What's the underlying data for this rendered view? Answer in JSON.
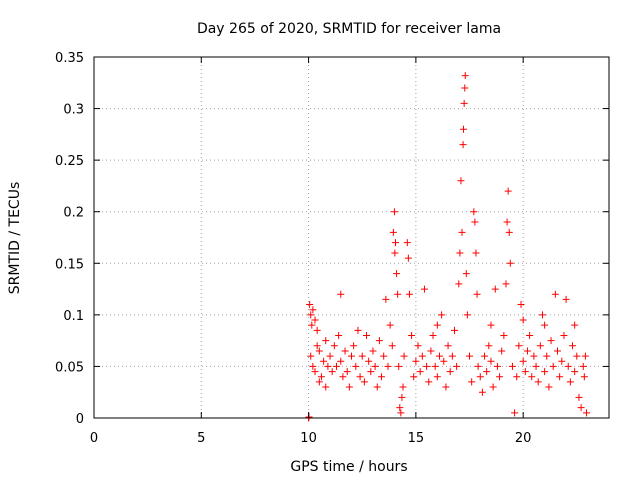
{
  "chart_data": {
    "type": "scatter",
    "title": "Day 265 of 2020, SRMTID for receiver lama",
    "xlabel": "GPS time / hours",
    "ylabel": "SRMTID / TECUs",
    "xlim": [
      0,
      24
    ],
    "ylim": [
      0,
      0.35
    ],
    "x_ticks": [
      0,
      5,
      10,
      15,
      20
    ],
    "x_tick_labels": [
      "0",
      "5",
      "10",
      "15",
      "20"
    ],
    "y_ticks": [
      0,
      0.05,
      0.1,
      0.15,
      0.2,
      0.25,
      0.3,
      0.35
    ],
    "y_tick_labels": [
      "0",
      "0.05",
      "0.1",
      "0.15",
      "0.2",
      "0.25",
      "0.3",
      "0.35"
    ],
    "grid": true,
    "marker": "+",
    "color": "#ff0000",
    "series": [
      {
        "name": "SRMTID",
        "points": [
          [
            10.0,
            0.0
          ],
          [
            10.02,
            0.001
          ],
          [
            10.05,
            0.11
          ],
          [
            10.1,
            0.1
          ],
          [
            10.15,
            0.09
          ],
          [
            10.2,
            0.105
          ],
          [
            10.3,
            0.095
          ],
          [
            10.4,
            0.085
          ],
          [
            10.1,
            0.06
          ],
          [
            10.2,
            0.05
          ],
          [
            10.3,
            0.045
          ],
          [
            10.4,
            0.07
          ],
          [
            10.5,
            0.065
          ],
          [
            10.6,
            0.04
          ],
          [
            10.7,
            0.055
          ],
          [
            10.8,
            0.075
          ],
          [
            10.9,
            0.05
          ],
          [
            11.0,
            0.06
          ],
          [
            11.1,
            0.045
          ],
          [
            11.2,
            0.07
          ],
          [
            10.5,
            0.035
          ],
          [
            10.8,
            0.03
          ],
          [
            11.3,
            0.05
          ],
          [
            11.4,
            0.08
          ],
          [
            11.5,
            0.055
          ],
          [
            11.6,
            0.04
          ],
          [
            11.7,
            0.065
          ],
          [
            11.8,
            0.045
          ],
          [
            11.9,
            0.03
          ],
          [
            12.0,
            0.06
          ],
          [
            12.1,
            0.07
          ],
          [
            12.2,
            0.05
          ],
          [
            11.5,
            0.12
          ],
          [
            12.3,
            0.085
          ],
          [
            12.4,
            0.04
          ],
          [
            12.5,
            0.06
          ],
          [
            12.6,
            0.035
          ],
          [
            12.7,
            0.08
          ],
          [
            12.8,
            0.055
          ],
          [
            12.9,
            0.045
          ],
          [
            13.0,
            0.065
          ],
          [
            13.1,
            0.05
          ],
          [
            13.2,
            0.03
          ],
          [
            13.3,
            0.075
          ],
          [
            13.4,
            0.04
          ],
          [
            13.5,
            0.06
          ],
          [
            13.6,
            0.115
          ],
          [
            13.7,
            0.05
          ],
          [
            13.8,
            0.09
          ],
          [
            13.9,
            0.07
          ],
          [
            13.95,
            0.18
          ],
          [
            14.0,
            0.2
          ],
          [
            14.02,
            0.16
          ],
          [
            14.05,
            0.17
          ],
          [
            14.1,
            0.14
          ],
          [
            14.15,
            0.12
          ],
          [
            14.2,
            0.05
          ],
          [
            14.25,
            0.01
          ],
          [
            14.3,
            0.005
          ],
          [
            14.35,
            0.02
          ],
          [
            14.4,
            0.03
          ],
          [
            14.45,
            0.06
          ],
          [
            14.6,
            0.17
          ],
          [
            14.65,
            0.155
          ],
          [
            14.7,
            0.12
          ],
          [
            14.8,
            0.08
          ],
          [
            14.9,
            0.04
          ],
          [
            15.0,
            0.055
          ],
          [
            15.1,
            0.07
          ],
          [
            15.2,
            0.045
          ],
          [
            15.3,
            0.06
          ],
          [
            15.4,
            0.125
          ],
          [
            15.5,
            0.05
          ],
          [
            15.6,
            0.035
          ],
          [
            15.7,
            0.065
          ],
          [
            15.8,
            0.08
          ],
          [
            15.9,
            0.05
          ],
          [
            16.0,
            0.04
          ],
          [
            16.1,
            0.06
          ],
          [
            16.2,
            0.1
          ],
          [
            16.3,
            0.055
          ],
          [
            16.4,
            0.03
          ],
          [
            16.5,
            0.07
          ],
          [
            16.6,
            0.045
          ],
          [
            16.7,
            0.06
          ],
          [
            16.8,
            0.085
          ],
          [
            16.9,
            0.05
          ],
          [
            17.0,
            0.13
          ],
          [
            17.05,
            0.16
          ],
          [
            17.1,
            0.23
          ],
          [
            17.15,
            0.18
          ],
          [
            17.2,
            0.265
          ],
          [
            17.22,
            0.28
          ],
          [
            17.25,
            0.305
          ],
          [
            17.28,
            0.32
          ],
          [
            17.3,
            0.332
          ],
          [
            17.35,
            0.14
          ],
          [
            17.4,
            0.1
          ],
          [
            17.5,
            0.06
          ],
          [
            17.6,
            0.035
          ],
          [
            17.7,
            0.2
          ],
          [
            17.75,
            0.19
          ],
          [
            17.8,
            0.16
          ],
          [
            17.85,
            0.12
          ],
          [
            17.9,
            0.05
          ],
          [
            18.0,
            0.04
          ],
          [
            18.1,
            0.025
          ],
          [
            18.2,
            0.06
          ],
          [
            18.3,
            0.045
          ],
          [
            18.4,
            0.07
          ],
          [
            18.5,
            0.055
          ],
          [
            18.6,
            0.03
          ],
          [
            18.7,
            0.125
          ],
          [
            18.8,
            0.05
          ],
          [
            18.9,
            0.04
          ],
          [
            19.0,
            0.065
          ],
          [
            19.1,
            0.08
          ],
          [
            19.2,
            0.13
          ],
          [
            19.25,
            0.19
          ],
          [
            19.3,
            0.22
          ],
          [
            19.35,
            0.18
          ],
          [
            19.4,
            0.15
          ],
          [
            19.5,
            0.05
          ],
          [
            19.6,
            0.005
          ],
          [
            19.7,
            0.04
          ],
          [
            19.8,
            0.07
          ],
          [
            19.9,
            0.11
          ],
          [
            20.0,
            0.055
          ],
          [
            20.1,
            0.045
          ],
          [
            20.2,
            0.065
          ],
          [
            20.3,
            0.08
          ],
          [
            20.4,
            0.04
          ],
          [
            20.5,
            0.06
          ],
          [
            20.6,
            0.05
          ],
          [
            20.7,
            0.035
          ],
          [
            20.8,
            0.07
          ],
          [
            20.9,
            0.1
          ],
          [
            21.0,
            0.045
          ],
          [
            21.1,
            0.06
          ],
          [
            21.2,
            0.03
          ],
          [
            21.3,
            0.075
          ],
          [
            21.4,
            0.05
          ],
          [
            21.5,
            0.12
          ],
          [
            21.6,
            0.065
          ],
          [
            21.7,
            0.04
          ],
          [
            21.8,
            0.055
          ],
          [
            21.9,
            0.08
          ],
          [
            22.0,
            0.115
          ],
          [
            22.1,
            0.05
          ],
          [
            22.2,
            0.035
          ],
          [
            22.3,
            0.07
          ],
          [
            22.4,
            0.045
          ],
          [
            22.5,
            0.06
          ],
          [
            22.6,
            0.02
          ],
          [
            22.7,
            0.01
          ],
          [
            22.8,
            0.05
          ],
          [
            22.85,
            0.04
          ],
          [
            22.9,
            0.06
          ],
          [
            22.95,
            0.005
          ],
          [
            22.4,
            0.09
          ],
          [
            21.0,
            0.09
          ],
          [
            20.0,
            0.095
          ],
          [
            18.5,
            0.09
          ],
          [
            16.0,
            0.09
          ]
        ]
      }
    ]
  }
}
